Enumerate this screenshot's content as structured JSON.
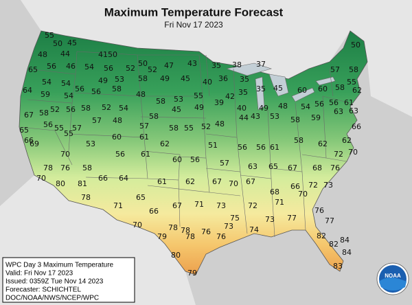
{
  "header": {
    "title": "Maximum Temperature Forecast",
    "subtitle": "Fri Nov 17 2023"
  },
  "temperatures": [
    55,
    50,
    45,
    44,
    41,
    50,
    48,
    50,
    47,
    43,
    35,
    38,
    37,
    50,
    65,
    56,
    46,
    54,
    56,
    52,
    49,
    45,
    40,
    36,
    35,
    57,
    58,
    64,
    54,
    54,
    56,
    49,
    53,
    58,
    52,
    59,
    54,
    56,
    58,
    48,
    58,
    53,
    55,
    42,
    35,
    35,
    45,
    60,
    60,
    58,
    55,
    62,
    58,
    67,
    52,
    56,
    58,
    52,
    54,
    58,
    45,
    49,
    39,
    40,
    49,
    48,
    54,
    56,
    56,
    61,
    65,
    56,
    55,
    57,
    57,
    48,
    57,
    58,
    55,
    52,
    48,
    44,
    43,
    53,
    58,
    59,
    63,
    63,
    66,
    69,
    55,
    53,
    60,
    61,
    62,
    51,
    56,
    56,
    61,
    58,
    62,
    62,
    66,
    70,
    56,
    61,
    60,
    56,
    57,
    63,
    65,
    67,
    68,
    72,
    70,
    78,
    76,
    58,
    70,
    80,
    81,
    66,
    64,
    61,
    62,
    67,
    70,
    67,
    68,
    66,
    72,
    73,
    76,
    78,
    71,
    65,
    67,
    71,
    73,
    72,
    71,
    70,
    76,
    70,
    66,
    78,
    78,
    76,
    73,
    75,
    74,
    73,
    77,
    77,
    79,
    78,
    76,
    80,
    79,
    82,
    82,
    84,
    84,
    83
  ],
  "info_box": {
    "lines": [
      "WPC Day 3 Maximum Temperature",
      "Valid: Fri Nov 17 2023",
      "Issued: 0359Z Tue Nov 14 2023",
      "Forecaster: SCHICHTEL",
      "DOC/NOAA/NWS/NCEP/WPC"
    ]
  },
  "logo": {
    "text": "NOAA"
  }
}
